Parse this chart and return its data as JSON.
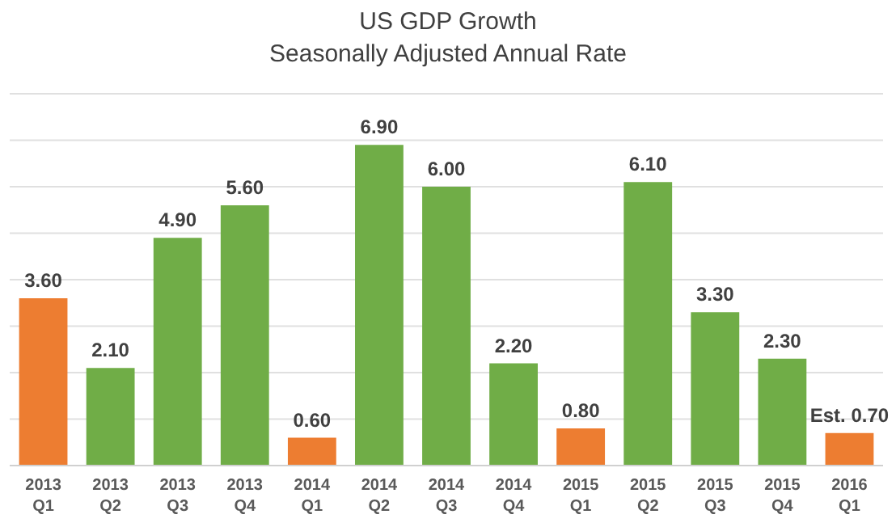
{
  "chart_data": {
    "type": "bar",
    "title": "US GDP Growth",
    "subtitle": "Seasonally Adjusted Annual Rate",
    "categories": [
      "2013\nQ1",
      "2013\nQ2",
      "2013\nQ3",
      "2013\nQ4",
      "2014\nQ1",
      "2014\nQ2",
      "2014\nQ3",
      "2014\nQ4",
      "2015\nQ1",
      "2015\nQ2",
      "2015\nQ3",
      "2015\nQ4",
      "2016\nQ1"
    ],
    "values": [
      3.6,
      2.1,
      4.9,
      5.6,
      0.6,
      6.9,
      6.0,
      2.2,
      0.8,
      6.1,
      3.3,
      2.3,
      0.7
    ],
    "colors": [
      "#ed7d31",
      "#70ad47",
      "#70ad47",
      "#70ad47",
      "#ed7d31",
      "#70ad47",
      "#70ad47",
      "#70ad47",
      "#ed7d31",
      "#70ad47",
      "#70ad47",
      "#70ad47",
      "#ed7d31"
    ],
    "value_labels": [
      "3.60",
      "2.10",
      "4.90",
      "5.60",
      "0.60",
      "6.90",
      "6.00",
      "2.20",
      "0.80",
      "6.10",
      "3.30",
      "2.30",
      "Est. 0.70"
    ],
    "ylim": [
      0,
      8
    ],
    "yticks": [
      {
        "value": 0,
        "label": null
      },
      {
        "value": 1,
        "label": null
      },
      {
        "value": 2,
        "label": null
      },
      {
        "value": 3,
        "label": null
      },
      {
        "value": 4,
        "label": null
      },
      {
        "value": 5,
        "label": null
      },
      {
        "value": 6,
        "label": null
      },
      {
        "value": 7,
        "label": null
      },
      {
        "value": 8,
        "label": null
      }
    ],
    "grid": "y",
    "tick_labels": "x"
  }
}
